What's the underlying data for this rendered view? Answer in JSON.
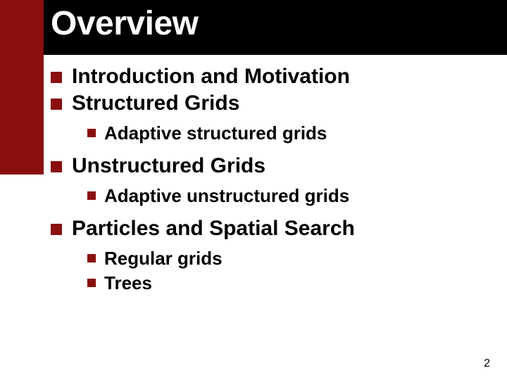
{
  "title": "Overview",
  "title_fontsize": 48,
  "l1_fontsize": 30,
  "l2_fontsize": 26,
  "pagenum_fontsize": 16,
  "colors": {
    "accent": "#8a0f0f",
    "titlebar": "#000000",
    "title_text": "#ffffff",
    "body_text": "#000000"
  },
  "items": [
    {
      "text": "Introduction and Motivation",
      "children": []
    },
    {
      "text": "Structured Grids",
      "children": [
        {
          "text": "Adaptive structured grids"
        }
      ]
    },
    {
      "text": "Unstructured Grids",
      "children": [
        {
          "text": "Adaptive unstructured grids"
        }
      ]
    },
    {
      "text": "Particles and Spatial Search",
      "children": [
        {
          "text": "Regular grids"
        },
        {
          "text": "Trees"
        }
      ]
    }
  ],
  "page_number": "2"
}
